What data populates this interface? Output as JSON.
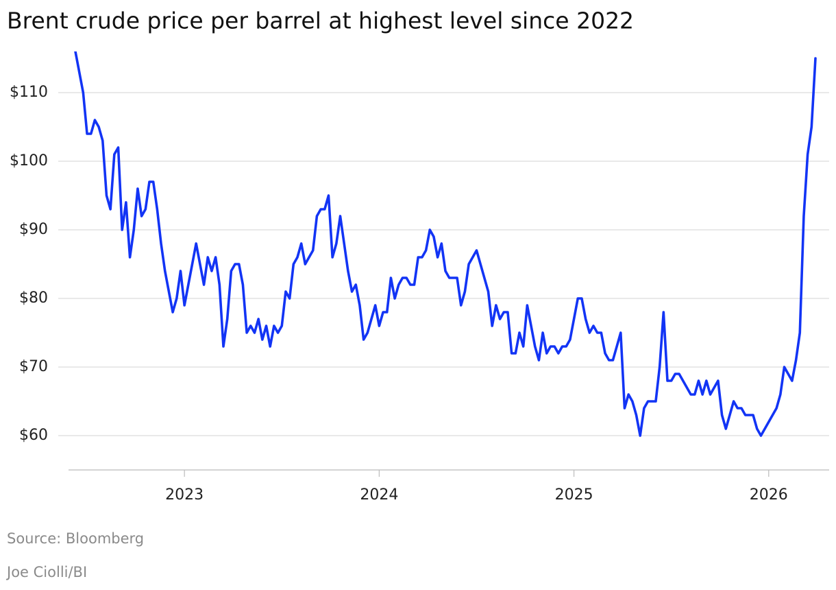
{
  "chart_data": {
    "type": "line",
    "title": "Brent crude price per barrel at highest level since 2022",
    "source": "Source: Bloomberg",
    "credit": "Joe Ciolli/BI",
    "xlim": [
      2022.44,
      2026.24
    ],
    "xticks": [
      2023,
      2024,
      2025,
      2026
    ],
    "ylim": [
      55,
      116
    ],
    "yticks": [
      {
        "value": 60,
        "label": "$60"
      },
      {
        "value": 70,
        "label": "$70"
      },
      {
        "value": 80,
        "label": "$80"
      },
      {
        "value": 90,
        "label": "$90"
      },
      {
        "value": 100,
        "label": "$100"
      },
      {
        "value": 110,
        "label": "$110"
      }
    ],
    "grid": true,
    "x": [
      2022.44,
      2022.46,
      2022.48,
      2022.5,
      2022.52,
      2022.54,
      2022.56,
      2022.58,
      2022.6,
      2022.62,
      2022.64,
      2022.66,
      2022.68,
      2022.7,
      2022.72,
      2022.74,
      2022.76,
      2022.78,
      2022.8,
      2022.82,
      2022.84,
      2022.86,
      2022.88,
      2022.9,
      2022.92,
      2022.94,
      2022.96,
      2022.98,
      2023,
      2023.02,
      2023.04,
      2023.06,
      2023.08,
      2023.1,
      2023.12,
      2023.14,
      2023.16,
      2023.18,
      2023.2,
      2023.22,
      2023.24,
      2023.26,
      2023.28,
      2023.3,
      2023.32,
      2023.34,
      2023.36,
      2023.38,
      2023.4,
      2023.42,
      2023.44,
      2023.46,
      2023.48,
      2023.5,
      2023.52,
      2023.54,
      2023.56,
      2023.58,
      2023.6,
      2023.62,
      2023.64,
      2023.66,
      2023.68,
      2023.7,
      2023.72,
      2023.74,
      2023.76,
      2023.78,
      2023.8,
      2023.82,
      2023.84,
      2023.86,
      2023.88,
      2023.9,
      2023.92,
      2023.94,
      2023.96,
      2023.98,
      2024,
      2024.02,
      2024.04,
      2024.06,
      2024.08,
      2024.1,
      2024.12,
      2024.14,
      2024.16,
      2024.18,
      2024.2,
      2024.22,
      2024.24,
      2024.26,
      2024.28,
      2024.3,
      2024.32,
      2024.34,
      2024.36,
      2024.38,
      2024.4,
      2024.42,
      2024.44,
      2024.46,
      2024.48,
      2024.5,
      2024.52,
      2024.54,
      2024.56,
      2024.58,
      2024.6,
      2024.62,
      2024.64,
      2024.66,
      2024.68,
      2024.7,
      2024.72,
      2024.74,
      2024.76,
      2024.78,
      2024.8,
      2024.82,
      2024.84,
      2024.86,
      2024.88,
      2024.9,
      2024.92,
      2024.94,
      2024.96,
      2024.98,
      2025,
      2025.02,
      2025.04,
      2025.06,
      2025.08,
      2025.1,
      2025.12,
      2025.14,
      2025.16,
      2025.18,
      2025.2,
      2025.22,
      2025.24,
      2025.26,
      2025.28,
      2025.3,
      2025.32,
      2025.34,
      2025.36,
      2025.38,
      2025.4,
      2025.42,
      2025.44,
      2025.46,
      2025.48,
      2025.5,
      2025.52,
      2025.54,
      2025.56,
      2025.58,
      2025.6,
      2025.62,
      2025.64,
      2025.66,
      2025.68,
      2025.7,
      2025.72,
      2025.74,
      2025.76,
      2025.78,
      2025.8,
      2025.82,
      2025.84,
      2025.86,
      2025.88,
      2025.9,
      2025.92,
      2025.94,
      2025.96,
      2025.98,
      2026,
      2026.02,
      2026.04,
      2026.06,
      2026.08,
      2026.1,
      2026.12,
      2026.14,
      2026.16,
      2026.18,
      2026.2,
      2026.22,
      2026.24
    ],
    "series": [
      {
        "color": "#1234f5",
        "values": [
          116,
          113,
          110,
          104,
          104,
          106,
          105,
          103,
          95,
          93,
          101,
          102,
          90,
          94,
          86,
          90,
          96,
          92,
          93,
          97,
          97,
          93,
          88,
          84,
          81,
          78,
          80,
          84,
          79,
          82,
          85,
          88,
          85,
          82,
          86,
          84,
          86,
          82,
          73,
          77,
          84,
          85,
          85,
          82,
          75,
          76,
          75,
          77,
          74,
          76,
          73,
          76,
          75,
          76,
          81,
          80,
          85,
          86,
          88,
          85,
          86,
          87,
          92,
          93,
          93,
          95,
          86,
          88,
          92,
          88,
          84,
          81,
          82,
          79,
          74,
          75,
          77,
          79,
          76,
          78,
          78,
          83,
          80,
          82,
          83,
          83,
          82,
          82,
          86,
          86,
          87,
          90,
          89,
          86,
          88,
          84,
          83,
          83,
          83,
          79,
          81,
          85,
          86,
          87,
          85,
          83,
          81,
          76,
          79,
          77,
          78,
          78,
          72,
          72,
          75,
          73,
          79,
          76,
          73,
          71,
          75,
          72,
          73,
          73,
          72,
          73,
          73,
          74,
          77,
          80,
          80,
          77,
          75,
          76,
          75,
          75,
          72,
          71,
          71,
          73,
          75,
          64,
          66,
          65,
          63,
          60,
          64,
          65,
          65,
          65,
          70,
          78,
          68,
          68,
          69,
          69,
          68,
          67,
          66,
          66,
          68,
          66,
          68,
          66,
          67,
          68,
          63,
          61,
          63,
          65,
          64,
          64,
          63,
          63,
          63,
          61,
          60,
          61,
          62,
          63,
          64,
          66,
          70,
          69,
          68,
          71,
          75,
          92,
          101,
          105,
          115
        ]
      }
    ]
  }
}
